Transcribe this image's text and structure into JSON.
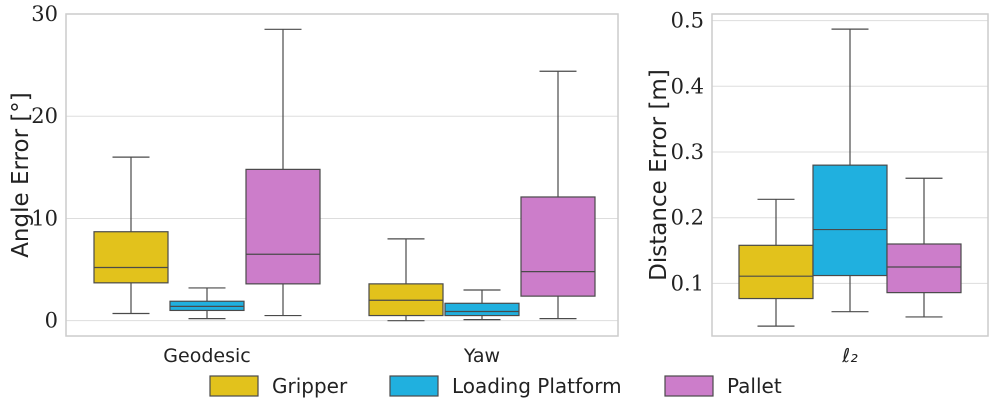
{
  "chart_data": [
    {
      "type": "box",
      "ylabel": "Angle Error [°]",
      "xlabel": "",
      "ylim": [
        -1.5,
        30
      ],
      "yticks": [
        "0",
        "10",
        "20",
        "30"
      ],
      "grid": "horizontal",
      "categories": [
        "Geodesic",
        "Yaw"
      ],
      "series": [
        {
          "name": "Gripper",
          "color": "#e2c21c",
          "boxes": [
            {
              "whisker_low": 0.7,
              "q1": 3.7,
              "median": 5.2,
              "q3": 8.7,
              "whisker_high": 16.0
            },
            {
              "whisker_low": 0.0,
              "q1": 0.5,
              "median": 2.0,
              "q3": 3.6,
              "whisker_high": 8.0
            }
          ]
        },
        {
          "name": "Loading Platform",
          "color": "#20b0df",
          "boxes": [
            {
              "whisker_low": 0.2,
              "q1": 1.0,
              "median": 1.4,
              "q3": 1.9,
              "whisker_high": 3.2
            },
            {
              "whisker_low": 0.1,
              "q1": 0.5,
              "median": 0.9,
              "q3": 1.7,
              "whisker_high": 3.0
            }
          ]
        },
        {
          "name": "Pallet",
          "color": "#cc7dca",
          "boxes": [
            {
              "whisker_low": 0.5,
              "q1": 3.6,
              "median": 6.5,
              "q3": 14.8,
              "whisker_high": 28.5
            },
            {
              "whisker_low": 0.2,
              "q1": 2.4,
              "median": 4.8,
              "q3": 12.1,
              "whisker_high": 24.4
            }
          ]
        }
      ]
    },
    {
      "type": "box",
      "ylabel": "Distance Error [m]",
      "xlabel": "",
      "ylim": [
        0.02,
        0.51
      ],
      "yticks": [
        "0.1",
        "0.2",
        "0.3",
        "0.4",
        "0.5"
      ],
      "grid": "horizontal",
      "categories": [
        "ℓ₂"
      ],
      "series": [
        {
          "name": "Gripper",
          "color": "#e2c21c",
          "boxes": [
            {
              "whisker_low": 0.035,
              "q1": 0.077,
              "median": 0.111,
              "q3": 0.158,
              "whisker_high": 0.228
            }
          ]
        },
        {
          "name": "Loading Platform",
          "color": "#20b0df",
          "boxes": [
            {
              "whisker_low": 0.057,
              "q1": 0.112,
              "median": 0.182,
              "q3": 0.28,
              "whisker_high": 0.487
            }
          ]
        },
        {
          "name": "Pallet",
          "color": "#cc7dca",
          "boxes": [
            {
              "whisker_low": 0.049,
              "q1": 0.086,
              "median": 0.125,
              "q3": 0.16,
              "whisker_high": 0.26
            }
          ]
        }
      ]
    }
  ],
  "legend": {
    "position": "bottom",
    "items": [
      {
        "label": "Gripper",
        "color": "#e2c21c"
      },
      {
        "label": "Loading Platform",
        "color": "#20b0df"
      },
      {
        "label": "Pallet",
        "color": "#cc7dca"
      }
    ]
  }
}
